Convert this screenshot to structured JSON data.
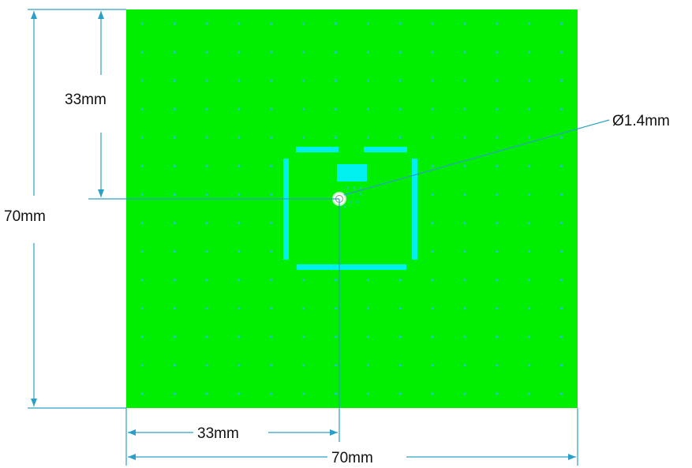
{
  "board": {
    "width_mm": 70,
    "height_mm": 70,
    "fill_color": "#00ee00",
    "via_color": "#22c8c0",
    "via_rows": 14,
    "via_cols": 14
  },
  "feed": {
    "offset_x_mm": 33,
    "offset_y_mm": 33,
    "diameter_label": "Ø1.4mm"
  },
  "slots": {
    "color": "#00f0f0"
  },
  "dimensions": {
    "vertical_top_label": "33mm",
    "vertical_total_label": "70mm",
    "horizontal_left_label": "33mm",
    "horizontal_total_label": "70mm",
    "line_color": "#2aa0c8"
  }
}
